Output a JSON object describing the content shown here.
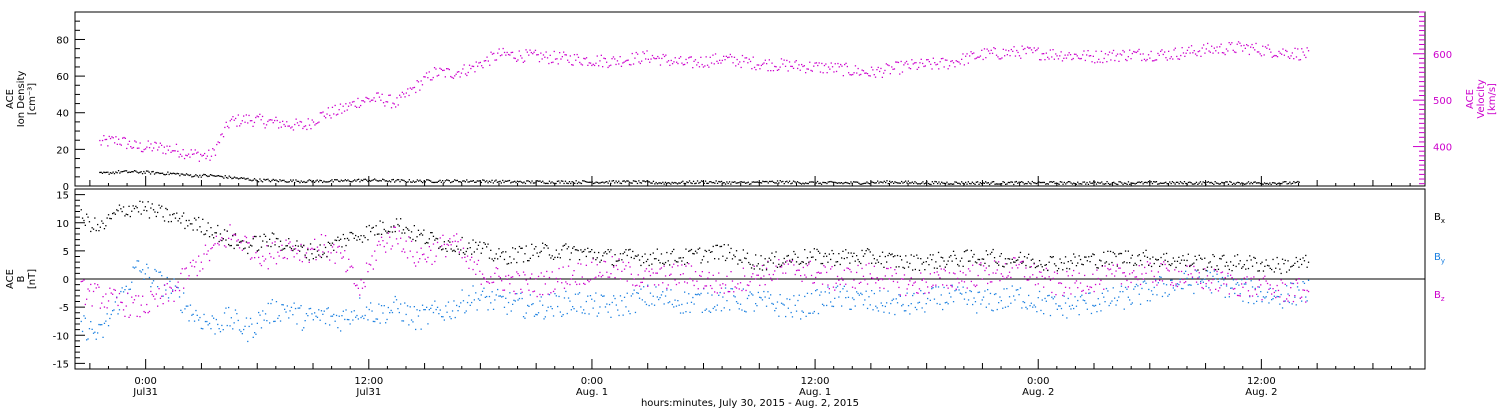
{
  "chart_data": [
    {
      "type": "scatter",
      "panel": "top",
      "ylabel_left": [
        "ACE",
        "Ion Density",
        "[cm⁻³]"
      ],
      "ylabel_right": [
        "ACE",
        "Velocity",
        "[km/s]"
      ],
      "ylim_left": [
        0,
        95
      ],
      "ylim_right": [
        315,
        690
      ],
      "yticks_left": [
        0,
        20,
        40,
        60,
        80
      ],
      "yticks_right": [
        400,
        500,
        600
      ],
      "series": [
        {
          "label": "Ion Density",
          "axis": "left",
          "color": "#000000",
          "x": [
            -2.5,
            -1.5,
            -0.5,
            0.5,
            1.5,
            2.5,
            3.5,
            4.5,
            6,
            8,
            10,
            12,
            14,
            16,
            18,
            20,
            22,
            24,
            26,
            28,
            30,
            32,
            34,
            36,
            38,
            40,
            42,
            44,
            46,
            48,
            50,
            52,
            54,
            56,
            58,
            60,
            62
          ],
          "values": [
            7,
            8,
            8,
            7.5,
            7,
            6,
            6,
            5,
            3.5,
            3,
            3,
            3.5,
            3,
            3,
            3,
            2.5,
            2.5,
            2.5,
            2.5,
            2,
            2.5,
            2,
            2.5,
            2,
            2,
            2.5,
            2,
            2,
            2,
            2,
            2,
            2,
            2,
            2,
            2,
            2,
            2
          ]
        },
        {
          "label": "Velocity",
          "axis": "right",
          "color": "#cc00cc",
          "x": [
            -2.5,
            -1.5,
            -0.5,
            0.5,
            1.5,
            2.5,
            3.5,
            4.5,
            5.5,
            6.5,
            7.5,
            8.5,
            9.5,
            10.5,
            11.5,
            12.5,
            13.5,
            14.5,
            15.5,
            16.5,
            17.5,
            19,
            21,
            23,
            25,
            27,
            29,
            31,
            33,
            35,
            37,
            39,
            41,
            43,
            45,
            47,
            49,
            51,
            53,
            55,
            57,
            59,
            61,
            62.5
          ],
          "values": [
            410,
            415,
            400,
            400,
            395,
            385,
            380,
            455,
            460,
            455,
            450,
            445,
            470,
            480,
            500,
            505,
            495,
            530,
            560,
            560,
            570,
            600,
            595,
            590,
            585,
            595,
            580,
            590,
            580,
            575,
            570,
            560,
            575,
            580,
            600,
            605,
            600,
            595,
            600,
            600,
            610,
            615,
            605,
            600
          ]
        }
      ]
    },
    {
      "type": "scatter",
      "panel": "bottom",
      "ylabel_left": [
        "ACE",
        "B",
        "[nT]"
      ],
      "ylim": [
        -16,
        16
      ],
      "yticks": [
        -15,
        -10,
        -5,
        0,
        5,
        10,
        15
      ],
      "xlabel": "hours:minutes, July 30, 2015 - Aug. 2, 2015",
      "x_ticks": [
        {
          "x": 0,
          "label": "0:00",
          "sub": "Jul31"
        },
        {
          "x": 12,
          "label": "12:00",
          "sub": "Jul31"
        },
        {
          "x": 24,
          "label": "0:00",
          "sub": "Aug. 1"
        },
        {
          "x": 36,
          "label": "12:00",
          "sub": "Aug. 1"
        },
        {
          "x": 48,
          "label": "0:00",
          "sub": "Aug. 2"
        },
        {
          "x": 60,
          "label": "12:00",
          "sub": "Aug. 2"
        }
      ],
      "xlim": [
        -3.8,
        68.8
      ],
      "legend": [
        {
          "base": "B",
          "sub": "x",
          "color": "#000000"
        },
        {
          "base": "B",
          "sub": "y",
          "color": "#1a7fe0"
        },
        {
          "base": "B",
          "sub": "z",
          "color": "#cc00cc"
        }
      ],
      "series": [
        {
          "label": "Bx",
          "color": "#000000",
          "x": [
            -3.5,
            -2.5,
            -1.5,
            -0.5,
            0.5,
            1.5,
            2.5,
            3.5,
            4.5,
            5.5,
            6.5,
            7.5,
            8.5,
            9.5,
            10.5,
            11.5,
            12.5,
            13.5,
            14.5,
            15.5,
            16.5,
            17.5,
            19,
            21,
            23,
            25,
            27,
            29,
            31,
            33,
            35,
            37,
            39,
            41,
            43,
            45,
            47,
            49,
            51,
            53,
            55,
            57,
            59,
            61,
            62.5
          ],
          "values": [
            11,
            9,
            12,
            13,
            12,
            11,
            10,
            9,
            7,
            6,
            7,
            6.5,
            5,
            5,
            7,
            8,
            9,
            10,
            8,
            7,
            6,
            6,
            4,
            5,
            5,
            4,
            4,
            4,
            5,
            3,
            4,
            4,
            4,
            3,
            3.5,
            4,
            3.5,
            3,
            3.5,
            4,
            3.5,
            3,
            3,
            2.5,
            3
          ]
        },
        {
          "label": "By",
          "color": "#1a7fe0",
          "x": [
            -3.5,
            -2.5,
            -1.5,
            -0.5,
            0.5,
            1.5,
            2.5,
            3.5,
            4.5,
            5.5,
            6.5,
            7.5,
            8.5,
            9.5,
            10.5,
            11.5,
            12.5,
            13.5,
            14.5,
            15.5,
            16.5,
            17.5,
            19,
            21,
            23,
            25,
            27,
            29,
            31,
            33,
            35,
            37,
            39,
            41,
            43,
            45,
            47,
            49,
            51,
            53,
            55,
            57,
            59,
            61,
            62.5
          ],
          "values": [
            -8,
            -10,
            -4,
            2,
            0,
            -2,
            -6,
            -8,
            -7,
            -9,
            -6,
            -5,
            -7,
            -6.5,
            -7,
            -5,
            -6,
            -5,
            -7,
            -6,
            -5,
            -3,
            -4,
            -5,
            -4,
            -5,
            -3,
            -4,
            -3.5,
            -4,
            -5,
            -3,
            -4,
            -4.5,
            -3,
            -4,
            -3,
            -5,
            -4,
            -3,
            -1,
            0,
            -2,
            -3,
            -2
          ]
        },
        {
          "label": "Bz",
          "color": "#cc00cc",
          "x": [
            -3.5,
            -2.5,
            -1.5,
            -0.5,
            0.5,
            1.5,
            2.5,
            3.5,
            4.5,
            5.5,
            6.5,
            7.5,
            8.5,
            9.5,
            10.5,
            11.5,
            12.5,
            13.5,
            14.5,
            15.5,
            16.5,
            17.5,
            19,
            21,
            23,
            25,
            27,
            29,
            31,
            33,
            35,
            37,
            39,
            41,
            43,
            45,
            47,
            49,
            51,
            53,
            55,
            57,
            59,
            61,
            62.5
          ],
          "values": [
            -2,
            -3,
            -4,
            -5,
            -4,
            -2,
            2,
            5,
            8,
            6,
            4,
            6,
            5,
            6,
            4,
            -2,
            6,
            8,
            4,
            5,
            7,
            2,
            0,
            -1,
            1,
            2,
            0,
            1,
            -1,
            1,
            2,
            0,
            1,
            -1,
            0,
            1,
            2,
            -1,
            0,
            1,
            1,
            0,
            -1,
            -2,
            -2
          ]
        }
      ]
    }
  ]
}
